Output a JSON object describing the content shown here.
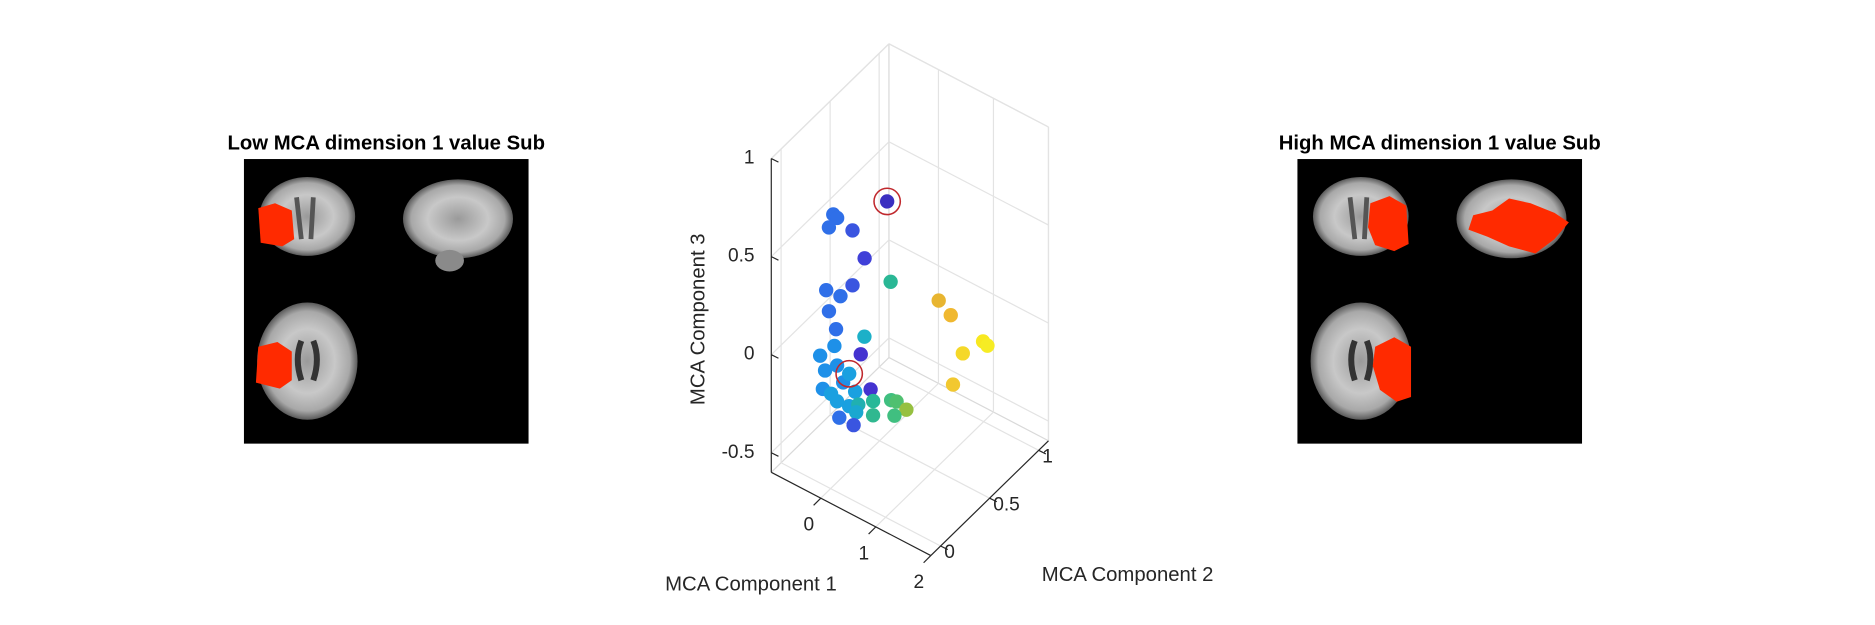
{
  "images": [
    {
      "title": "Low MCA dimension 1 value Sub"
    },
    {
      "title": "High MCA dimension 1 value Sub"
    }
  ],
  "chart_data": {
    "type": "scatter3d",
    "xlabel": "MCA Component 1",
    "ylabel": "MCA Component 2",
    "zlabel": "MCA Component 3",
    "x": [
      0.85,
      -0.13,
      0.03,
      -0.12,
      0.22,
      0.44,
      0.22,
      0.2,
      -0.08,
      0.09,
      -0.03,
      0.01,
      0.45,
      0.58,
      0.08,
      0.37,
      -0.02,
      -0.19,
      -0.19,
      -0.06,
      0.9,
      0.98,
      0.71,
      0.71,
      -0.23,
      -0.17,
      0.05,
      0.16,
      -0.15,
      -0.02,
      0.09,
      0.46,
      -0.12,
      0.06,
      0.12,
      0.13,
      0.13,
      0.18,
      -0.03,
      0.02,
      -0.02,
      0.24
    ],
    "y": [
      0.1,
      0.1,
      0.05,
      0.05,
      0.1,
      0.1,
      0.1,
      0.5,
      0,
      0.05,
      0,
      0.05,
      0.85,
      0.9,
      0.3,
      0.1,
      0.05,
      0,
      0.05,
      0.1,
      1.05,
      1.05,
      0.95,
      0.85,
      0.05,
      0.1,
      0.1,
      0.1,
      0.15,
      0.2,
      0.2,
      0.15,
      0.35,
      0.4,
      0.55,
      0.6,
      0.7,
      0.55,
      0.45,
      0.25,
      0.1,
      0.1
    ],
    "z": [
      0.94,
      0.73,
      0.76,
      0.69,
      0.7,
      0.59,
      0.42,
      0.24,
      0.4,
      0.37,
      0.3,
      0.19,
      0.01,
      -0.07,
      0.04,
      0.09,
      0.1,
      0.05,
      -0.05,
      -0.03,
      -0.23,
      -0.24,
      -0.27,
      -0.38,
      -0.15,
      -0.19,
      -0.1,
      -0.04,
      -0.25,
      -0.28,
      -0.19,
      -0.1,
      -0.36,
      -0.34,
      -0.4,
      -0.43,
      -0.52,
      -0.47,
      -0.45,
      -0.33,
      -0.29,
      -0.29
    ],
    "colors": [
      "#3b2fc0",
      "#2f6fe8",
      "#2f6fe8",
      "#2f6fe8",
      "#3a55e0",
      "#4040d8",
      "#3a55e0",
      "#2ab795",
      "#2f6fe8",
      "#2f6fe8",
      "#2f6fe8",
      "#2f6fe8",
      "#e8b530",
      "#f0b830",
      "#1cb0c8",
      "#4433d0",
      "#1e90e8",
      "#1e90e8",
      "#1e90e8",
      "#1e90e8",
      "#f8e820",
      "#f6ec24",
      "#f5d828",
      "#f2c830",
      "#1e90e8",
      "#1aa0e0",
      "#1e90e8",
      "#1aa0e0",
      "#1aa0e0",
      "#1aa0e0",
      "#1aa0e0",
      "#4433d0",
      "#20b0b0",
      "#28b898",
      "#40bf80",
      "#50c070",
      "#96c040",
      "#40bf80",
      "#30b890",
      "#1aa8d0",
      "#2f6fe8",
      "#3a55e0"
    ],
    "highlight": {
      "indices": [
        0,
        27
      ],
      "color": "#c0282d"
    },
    "xlim": [
      -0.9,
      2
    ],
    "ylim": [
      -0.1,
      1.1
    ],
    "zlim": [
      -0.6,
      1
    ],
    "xticks": [
      0,
      1,
      2
    ],
    "yticks": [
      0,
      0.5,
      1
    ],
    "zticks": [
      -0.5,
      0,
      0.5,
      1
    ],
    "grid": true
  }
}
